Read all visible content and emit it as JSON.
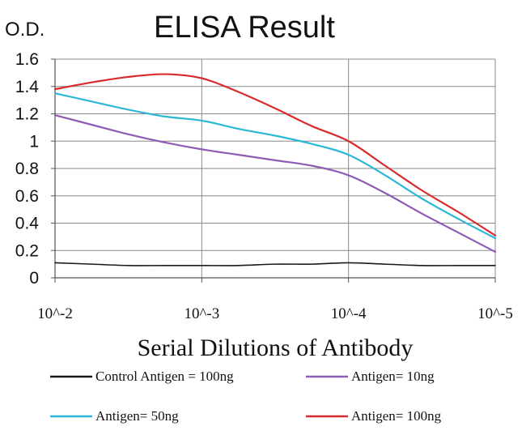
{
  "chart_data": {
    "type": "line",
    "title": "ELISA Result",
    "ylabel": "O.D.",
    "xlabel": "Serial Dilutions of Antibody",
    "categories": [
      "10^-2",
      "10^-3",
      "10^-4",
      "10^-5"
    ],
    "x": [
      0,
      0.25,
      0.5,
      0.75,
      1.0,
      1.25,
      1.5,
      1.75,
      2.0,
      2.25,
      2.5,
      2.75,
      3.0
    ],
    "ylim": [
      0,
      1.6
    ],
    "yticks": [
      "0",
      "0.2",
      "0.4",
      "0.6",
      "0.8",
      "1",
      "1.2",
      "1.4",
      "1.6"
    ],
    "grid": true,
    "legend_position": "bottom",
    "series": [
      {
        "name": "Control Antigen = 100ng",
        "color": "#1a1a1a",
        "values": [
          0.11,
          0.1,
          0.09,
          0.09,
          0.09,
          0.09,
          0.1,
          0.1,
          0.11,
          0.1,
          0.09,
          0.09,
          0.09
        ]
      },
      {
        "name": "Antigen= 10ng",
        "color": "#8e5bb5",
        "values": [
          1.19,
          1.12,
          1.05,
          0.99,
          0.94,
          0.9,
          0.86,
          0.82,
          0.75,
          0.62,
          0.47,
          0.33,
          0.19
        ]
      },
      {
        "name": "Antigen= 50ng",
        "color": "#2db7d6",
        "values": [
          1.35,
          1.29,
          1.23,
          1.18,
          1.15,
          1.09,
          1.04,
          0.98,
          0.9,
          0.75,
          0.58,
          0.43,
          0.29
        ]
      },
      {
        "name": "Antigen= 100ng",
        "color": "#d92b2b",
        "values": [
          1.38,
          1.43,
          1.47,
          1.49,
          1.46,
          1.36,
          1.24,
          1.11,
          1.0,
          0.82,
          0.64,
          0.48,
          0.31
        ]
      }
    ]
  }
}
